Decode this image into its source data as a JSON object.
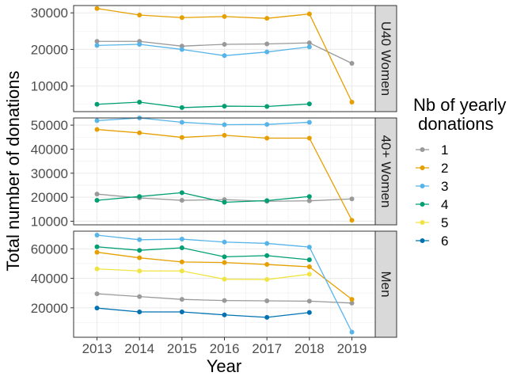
{
  "chart_data": {
    "type": "line",
    "xlabel": "Year",
    "ylabel": "Total number of donations",
    "x": [
      2013,
      2014,
      2015,
      2016,
      2017,
      2018,
      2019
    ],
    "legend": {
      "title_line1": "Nb of yearly",
      "title_line2": " donations",
      "placement": "right"
    },
    "colors": {
      "1": "#999999",
      "2": "#E69F00",
      "3": "#56B4E9",
      "4": "#009E73",
      "5": "#F0E442",
      "6": "#0072B2"
    },
    "panels": [
      {
        "label": "U40 Women",
        "ylim": [
          3000,
          32000
        ],
        "yticks": [
          10000,
          20000,
          30000
        ],
        "series": [
          {
            "name": "1",
            "values": [
              22200,
              22200,
              20900,
              21400,
              21500,
              21800,
              16200
            ]
          },
          {
            "name": "2",
            "values": [
              31200,
              29400,
              28700,
              29000,
              28500,
              29700,
              5600
            ]
          },
          {
            "name": "3",
            "values": [
              21100,
              21400,
              20000,
              18300,
              19300,
              20700,
              null
            ]
          },
          {
            "name": "4",
            "values": [
              5000,
              5600,
              4100,
              4500,
              4400,
              5100,
              null
            ]
          }
        ]
      },
      {
        "label": "40+ Women",
        "ylim": [
          8500,
          53000
        ],
        "yticks": [
          10000,
          20000,
          30000,
          40000,
          50000
        ],
        "series": [
          {
            "name": "1",
            "values": [
              21300,
              19700,
              18700,
              19000,
              18300,
              18500,
              19300
            ]
          },
          {
            "name": "2",
            "values": [
              48200,
              46800,
              44900,
              45800,
              44600,
              44600,
              10400
            ]
          },
          {
            "name": "3",
            "values": [
              51900,
              53000,
              51200,
              50200,
              50300,
              51200,
              null
            ]
          },
          {
            "name": "4",
            "values": [
              18700,
              20300,
              21900,
              17900,
              18600,
              20300,
              null
            ]
          }
        ]
      },
      {
        "label": "Men",
        "ylim": [
          0,
          72000
        ],
        "yticks": [
          20000,
          40000,
          60000
        ],
        "series": [
          {
            "name": "1",
            "values": [
              29500,
              27600,
              25700,
              24900,
              24700,
              24500,
              23200
            ]
          },
          {
            "name": "2",
            "values": [
              57700,
              53900,
              51100,
              50700,
              49400,
              47800,
              25700
            ]
          },
          {
            "name": "3",
            "values": [
              69300,
              66200,
              66600,
              64600,
              63700,
              61200,
              3500
            ]
          },
          {
            "name": "4",
            "values": [
              61400,
              59000,
              60700,
              54600,
              55400,
              52600,
              null
            ]
          },
          {
            "name": "5",
            "values": [
              46400,
              45000,
              45000,
              39400,
              39200,
              42800,
              null
            ]
          },
          {
            "name": "6",
            "values": [
              19800,
              17200,
              17200,
              15200,
              13500,
              16800,
              null
            ]
          }
        ]
      }
    ]
  }
}
